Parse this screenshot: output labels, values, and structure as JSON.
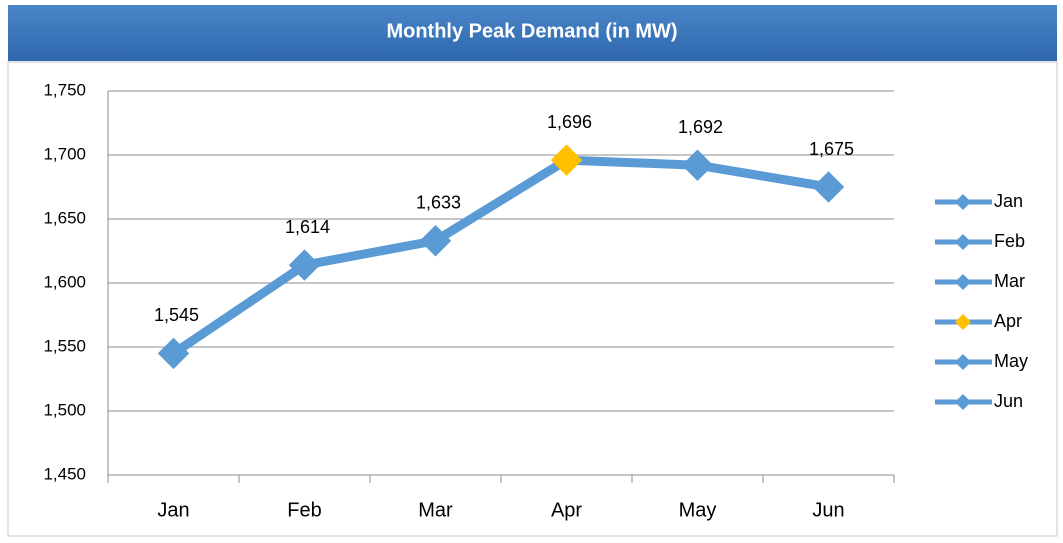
{
  "chart_data": {
    "type": "line",
    "title": "Monthly Peak Demand (in MW)",
    "categories": [
      "Jan",
      "Feb",
      "Mar",
      "Apr",
      "May",
      "Jun"
    ],
    "values": [
      1545,
      1614,
      1633,
      1696,
      1692,
      1675
    ],
    "value_labels": [
      "1,545",
      "1,614",
      "1,633",
      "1,696",
      "1,692",
      "1,675"
    ],
    "color": "#5b9bd5",
    "point_colors": [
      "#5b9bd5",
      "#5b9bd5",
      "#5b9bd5",
      "#ffc000",
      "#5b9bd5",
      "#5b9bd5"
    ],
    "ylim": [
      1450,
      1750
    ],
    "yticks": [
      {
        "value": 1450,
        "label": "1,450"
      },
      {
        "value": 1500,
        "label": "1,500"
      },
      {
        "value": 1550,
        "label": "1,550"
      },
      {
        "value": 1600,
        "label": "1,600"
      },
      {
        "value": 1650,
        "label": "1,650"
      },
      {
        "value": 1700,
        "label": "1,700"
      },
      {
        "value": 1750,
        "label": "1,750"
      }
    ],
    "grid": true,
    "legend": "right"
  }
}
